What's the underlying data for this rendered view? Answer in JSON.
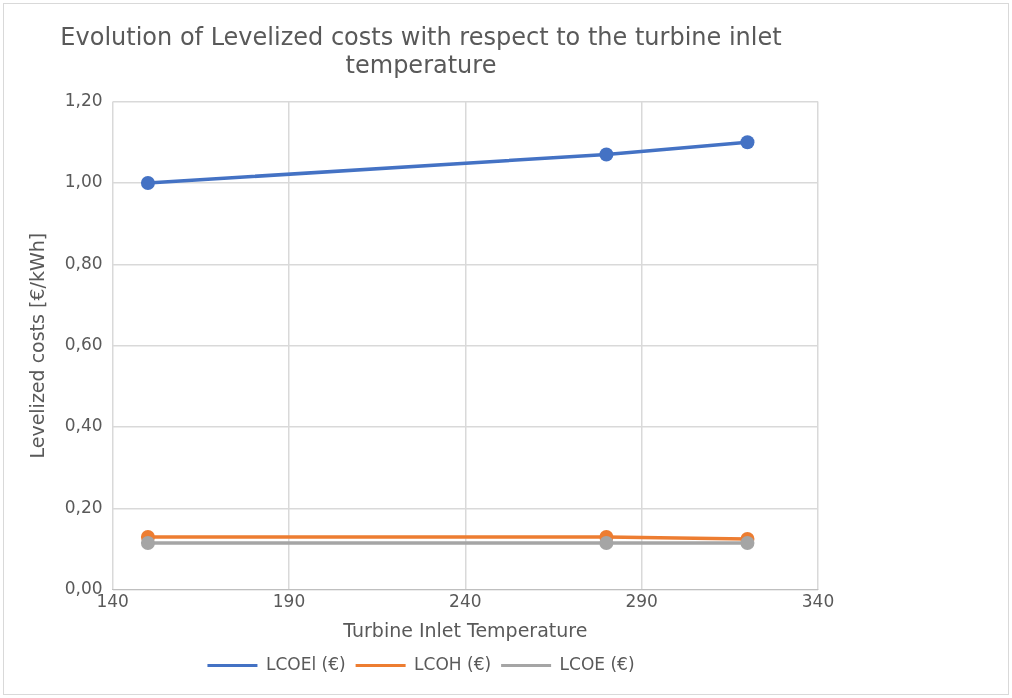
{
  "chart_data": {
    "type": "line",
    "title": "Evolution of Levelized costs with respect to the turbine inlet temperature",
    "xlabel": "Turbine Inlet Temperature",
    "ylabel": "Levelized costs [€/kWh]",
    "x": [
      150,
      280,
      320
    ],
    "series": [
      {
        "name": "LCOEl (€)",
        "color": "#4472c4",
        "values": [
          1.0,
          1.07,
          1.1
        ]
      },
      {
        "name": "LCOH (€)",
        "color": "#ed7d31",
        "values": [
          0.13,
          0.13,
          0.125
        ]
      },
      {
        "name": "LCOE (€)",
        "color": "#a5a5a5",
        "values": [
          0.115,
          0.115,
          0.115
        ]
      }
    ],
    "xlim": [
      140,
      340
    ],
    "xticks": [
      140,
      190,
      240,
      290,
      340
    ],
    "ylim": [
      0,
      1.2
    ],
    "yticks": [
      {
        "value": 0,
        "label": "0,00"
      },
      {
        "value": 0.2,
        "label": "0,20"
      },
      {
        "value": 0.4,
        "label": "0,40"
      },
      {
        "value": 0.6,
        "label": "0,60"
      },
      {
        "value": 0.8,
        "label": "0,80"
      },
      {
        "value": 1,
        "label": "1,00"
      },
      {
        "value": 1.2,
        "label": "1,20"
      }
    ],
    "grid": true,
    "legend": "bottom",
    "marker": "circle",
    "line_style": "solid"
  }
}
